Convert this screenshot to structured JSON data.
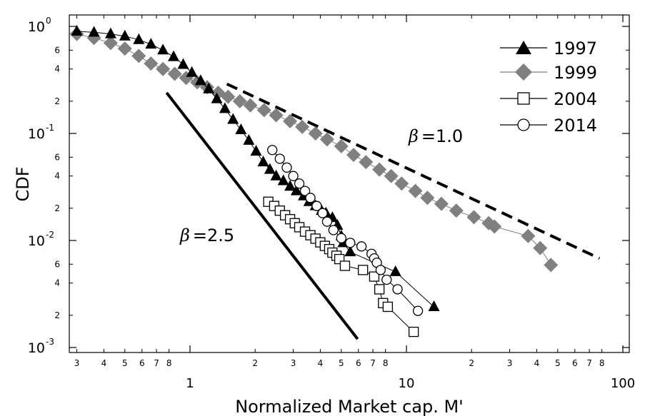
{
  "chart_data": {
    "type": "scatter",
    "title": "",
    "xlabel": "Normalized Market cap. M'",
    "ylabel": "CDF",
    "xscale": "log",
    "yscale": "log",
    "xlim": [
      0.28,
      100
    ],
    "ylim": [
      0.00085,
      1.1
    ],
    "x_ticks": {
      "major": [
        {
          "value": 1,
          "label": "1"
        },
        {
          "value": 10,
          "label": "10"
        },
        {
          "value": 100,
          "label": "100"
        }
      ],
      "minor": [
        {
          "value": 0.3,
          "label": "3"
        },
        {
          "value": 0.4,
          "label": "4"
        },
        {
          "value": 0.5,
          "label": "5"
        },
        {
          "value": 0.6,
          "label": "6"
        },
        {
          "value": 0.7,
          "label": "7"
        },
        {
          "value": 0.8,
          "label": "8"
        },
        {
          "value": 2,
          "label": "2"
        },
        {
          "value": 3,
          "label": "3"
        },
        {
          "value": 4,
          "label": "4"
        },
        {
          "value": 5,
          "label": "5"
        },
        {
          "value": 6,
          "label": "6"
        },
        {
          "value": 7,
          "label": "7"
        },
        {
          "value": 8,
          "label": "8"
        },
        {
          "value": 20,
          "label": "2"
        },
        {
          "value": 30,
          "label": "3"
        },
        {
          "value": 40,
          "label": "4"
        },
        {
          "value": 50,
          "label": "5"
        },
        {
          "value": 60,
          "label": "6"
        },
        {
          "value": 70,
          "label": "7"
        },
        {
          "value": 80,
          "label": "8"
        }
      ]
    },
    "y_ticks": {
      "major": [
        {
          "value": 1,
          "base": "10",
          "exp": "0"
        },
        {
          "value": 0.1,
          "base": "10",
          "exp": "-1"
        },
        {
          "value": 0.01,
          "base": "10",
          "exp": "-2"
        },
        {
          "value": 0.001,
          "base": "10",
          "exp": "-3"
        }
      ],
      "minor": [
        {
          "value": 0.6,
          "label": "6"
        },
        {
          "value": 0.4,
          "label": "4"
        },
        {
          "value": 0.2,
          "label": "2"
        },
        {
          "value": 0.06,
          "label": "6"
        },
        {
          "value": 0.04,
          "label": "4"
        },
        {
          "value": 0.02,
          "label": "2"
        },
        {
          "value": 0.006,
          "label": "6"
        },
        {
          "value": 0.004,
          "label": "4"
        },
        {
          "value": 0.002,
          "label": "2"
        }
      ]
    },
    "legend": {
      "position": "top-right",
      "entries": [
        "1997",
        "1999",
        "2004",
        "2014"
      ]
    },
    "series": [
      {
        "name": "1997",
        "marker": "triangle-filled",
        "color": "#000000",
        "x": [
          0.3,
          0.36,
          0.43,
          0.5,
          0.58,
          0.66,
          0.75,
          0.84,
          0.93,
          1.02,
          1.12,
          1.22,
          1.33,
          1.45,
          1.58,
          1.72,
          1.87,
          2.02,
          2.18,
          2.34,
          2.5,
          2.7,
          2.9,
          3.1,
          3.35,
          3.55,
          3.8,
          4.05,
          4.25,
          4.55,
          4.8,
          5.0,
          5.1,
          5.5,
          8.9,
          13.4
        ],
        "y": [
          0.9,
          0.88,
          0.85,
          0.81,
          0.75,
          0.68,
          0.6,
          0.52,
          0.44,
          0.37,
          0.31,
          0.26,
          0.21,
          0.17,
          0.135,
          0.108,
          0.086,
          0.068,
          0.054,
          0.046,
          0.04,
          0.036,
          0.032,
          0.029,
          0.026,
          0.023,
          0.021,
          0.019,
          0.018,
          0.0163,
          0.0138,
          0.011,
          0.0095,
          0.0078,
          0.0051,
          0.0024
        ]
      },
      {
        "name": "1999",
        "marker": "diamond-filled",
        "color": "#808080",
        "x": [
          0.3,
          0.36,
          0.43,
          0.5,
          0.58,
          0.66,
          0.75,
          0.85,
          0.96,
          1.08,
          1.2,
          1.35,
          1.5,
          1.7,
          1.9,
          2.2,
          2.5,
          2.9,
          3.3,
          3.8,
          4.3,
          5.0,
          5.7,
          6.5,
          7.5,
          8.5,
          9.5,
          11.0,
          12.5,
          14.5,
          17.0,
          20.5,
          24.0,
          25.5,
          36.5,
          41.5,
          46.5
        ],
        "y": [
          0.85,
          0.78,
          0.7,
          0.62,
          0.53,
          0.45,
          0.4,
          0.36,
          0.33,
          0.3,
          0.27,
          0.24,
          0.22,
          0.2,
          0.183,
          0.165,
          0.148,
          0.13,
          0.115,
          0.1,
          0.088,
          0.076,
          0.063,
          0.054,
          0.046,
          0.04,
          0.034,
          0.029,
          0.025,
          0.022,
          0.019,
          0.0165,
          0.0145,
          0.0135,
          0.011,
          0.0085,
          0.0059
        ]
      },
      {
        "name": "2004",
        "marker": "square-open",
        "color": "#000000",
        "x": [
          2.3,
          2.45,
          2.6,
          2.75,
          2.9,
          3.05,
          3.2,
          3.4,
          3.6,
          3.8,
          4.0,
          4.2,
          4.4,
          4.55,
          4.75,
          4.9,
          5.2,
          6.3,
          7.1,
          7.5,
          7.8,
          8.2,
          10.8
        ],
        "y": [
          0.023,
          0.021,
          0.019,
          0.0172,
          0.0158,
          0.0145,
          0.0133,
          0.0121,
          0.0112,
          0.0104,
          0.0096,
          0.0089,
          0.0083,
          0.0077,
          0.0072,
          0.0067,
          0.0058,
          0.0053,
          0.0046,
          0.0035,
          0.0026,
          0.0024,
          0.0014
        ]
      },
      {
        "name": "2014",
        "marker": "circle-open",
        "color": "#000000",
        "x": [
          2.4,
          2.6,
          2.8,
          3.0,
          3.2,
          3.4,
          3.6,
          3.85,
          4.1,
          4.3,
          4.6,
          5.0,
          5.5,
          6.2,
          6.9,
          7.1,
          7.3,
          7.6,
          8.1,
          9.1,
          11.3
        ],
        "y": [
          0.07,
          0.058,
          0.048,
          0.04,
          0.034,
          0.029,
          0.025,
          0.021,
          0.018,
          0.015,
          0.0125,
          0.0105,
          0.0095,
          0.0088,
          0.0075,
          0.0068,
          0.0062,
          0.0053,
          0.0043,
          0.0035,
          0.0022
        ]
      }
    ],
    "reference_lines": [
      {
        "name": "beta-1.0",
        "label_symbol": "β",
        "label_text": "=1.0",
        "style": "dashed",
        "slope": -1.0,
        "x": [
          1.48,
          78
        ],
        "y": [
          0.29,
          0.0068
        ]
      },
      {
        "name": "beta-2.5",
        "label_symbol": "β",
        "label_text": "=2.5",
        "style": "solid",
        "slope": -2.5,
        "x": [
          0.78,
          5.95
        ],
        "y": [
          0.24,
          0.0012
        ]
      }
    ]
  }
}
